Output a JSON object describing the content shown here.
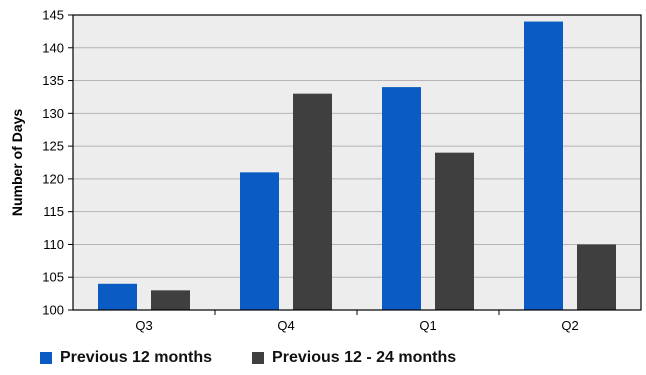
{
  "chart_data": {
    "type": "bar",
    "categories": [
      "Q3",
      "Q4",
      "Q1",
      "Q2"
    ],
    "series": [
      {
        "name": "Previous 12 months",
        "values": [
          104,
          121,
          134,
          144
        ],
        "color": "#0a5cc4"
      },
      {
        "name": "Previous 12 - 24 months",
        "values": [
          103,
          133,
          124,
          110
        ],
        "color": "#3f3f3f"
      }
    ],
    "title": "",
    "xlabel": "",
    "ylabel": "Number of Days",
    "ylim": [
      100,
      145
    ],
    "yticks": [
      100,
      105,
      110,
      115,
      120,
      125,
      130,
      135,
      140,
      145
    ],
    "grid": true,
    "legend_position": "bottom-left",
    "plot_background": "#ededed"
  }
}
